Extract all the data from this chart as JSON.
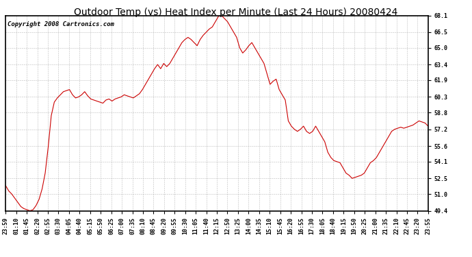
{
  "title": "Outdoor Temp (vs) Heat Index per Minute (Last 24 Hours) 20080424",
  "copyright": "Copyright 2008 Cartronics.com",
  "line_color": "#cc0000",
  "background_color": "#ffffff",
  "grid_color": "#aaaaaa",
  "title_fontsize": 10,
  "copyright_fontsize": 6.5,
  "tick_fontsize": 6,
  "ylim": [
    49.4,
    68.1
  ],
  "yticks": [
    49.4,
    51.0,
    52.5,
    54.1,
    55.6,
    57.2,
    58.8,
    60.3,
    61.9,
    63.4,
    65.0,
    66.5,
    68.1
  ],
  "xtick_labels": [
    "23:59",
    "01:10",
    "01:45",
    "02:20",
    "02:55",
    "03:30",
    "04:05",
    "04:40",
    "05:15",
    "05:50",
    "06:25",
    "07:00",
    "07:35",
    "08:10",
    "08:45",
    "09:20",
    "09:55",
    "10:30",
    "11:05",
    "11:40",
    "12:15",
    "12:50",
    "13:25",
    "14:00",
    "14:35",
    "15:10",
    "15:45",
    "16:20",
    "16:55",
    "17:30",
    "18:05",
    "18:40",
    "19:15",
    "19:50",
    "20:25",
    "21:00",
    "21:35",
    "22:10",
    "22:45",
    "23:20",
    "23:55"
  ],
  "curve": [
    51.8,
    51.3,
    51.0,
    50.6,
    50.2,
    49.8,
    49.6,
    49.5,
    49.4,
    49.5,
    49.9,
    50.5,
    51.5,
    53.0,
    55.5,
    58.5,
    59.8,
    60.2,
    60.5,
    60.8,
    60.9,
    61.0,
    60.5,
    60.2,
    60.3,
    60.5,
    60.8,
    60.4,
    60.1,
    60.0,
    59.9,
    59.8,
    59.7,
    60.0,
    60.1,
    59.9,
    60.1,
    60.2,
    60.3,
    60.5,
    60.4,
    60.3,
    60.2,
    60.4,
    60.6,
    61.0,
    61.5,
    62.0,
    62.5,
    63.0,
    63.4,
    63.0,
    63.5,
    63.2,
    63.5,
    64.0,
    64.5,
    65.0,
    65.5,
    65.8,
    66.0,
    65.8,
    65.5,
    65.2,
    65.8,
    66.2,
    66.5,
    66.8,
    67.0,
    67.5,
    68.0,
    68.1,
    67.8,
    67.5,
    67.0,
    66.5,
    66.0,
    65.0,
    64.5,
    64.8,
    65.2,
    65.5,
    65.0,
    64.5,
    64.0,
    63.5,
    62.5,
    61.5,
    61.8,
    62.0,
    61.0,
    60.5,
    60.0,
    58.0,
    57.5,
    57.2,
    57.0,
    57.2,
    57.5,
    57.0,
    56.8,
    57.0,
    57.5,
    57.0,
    56.5,
    56.0,
    55.0,
    54.5,
    54.2,
    54.1,
    54.0,
    53.5,
    53.0,
    52.8,
    52.5,
    52.6,
    52.7,
    52.8,
    53.0,
    53.5,
    54.0,
    54.2,
    54.5,
    55.0,
    55.5,
    56.0,
    56.5,
    57.0,
    57.2,
    57.3,
    57.4,
    57.3,
    57.4,
    57.5,
    57.6,
    57.8,
    58.0,
    57.9,
    57.8,
    57.5
  ]
}
